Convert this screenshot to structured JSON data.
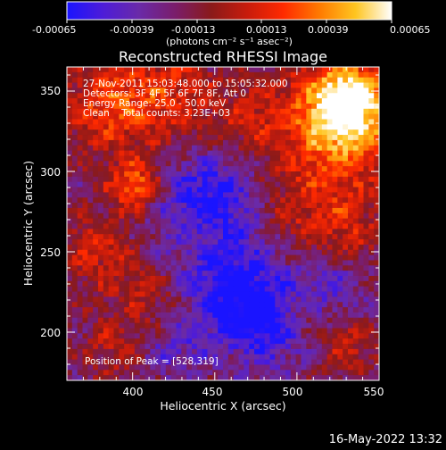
{
  "colorbar": {
    "ticks": [
      "-0.00065",
      "-0.00039",
      "-0.00013",
      "0.00013",
      "0.00039",
      "0.00065"
    ],
    "units": "(photons cm⁻² s⁻¹ asec⁻²)",
    "colors": [
      "#1a14ff",
      "#4d1cd8",
      "#6a2aa8",
      "#7a1d6b",
      "#8a1a1a",
      "#c81c0c",
      "#ff2a00",
      "#ff7a00",
      "#ffc520",
      "#ffffff"
    ]
  },
  "title": "Reconstructed RHESSI Image",
  "info": {
    "line1": "27-Nov-2011 15:03:48.000 to 15:05:32.000",
    "line2": "Detectors: 3F 4F 5F 6F 7F 8F, Att 0",
    "line3": "Energy Range: 25.0 - 50.0 keV",
    "line4": "Clean    Total counts: 3.23E+03"
  },
  "peak_text": "Position of Peak = [528,319]",
  "axes": {
    "xlabel": "Heliocentric X (arcsec)",
    "ylabel": "Heliocentric Y (arcsec)",
    "x_ticks": [
      "400",
      "450",
      "500",
      "550"
    ],
    "y_ticks": [
      "200",
      "250",
      "300",
      "350"
    ],
    "xlim": [
      360,
      550
    ],
    "ylim": [
      170,
      365
    ]
  },
  "timestamp": "16-May-2022 13:32"
}
